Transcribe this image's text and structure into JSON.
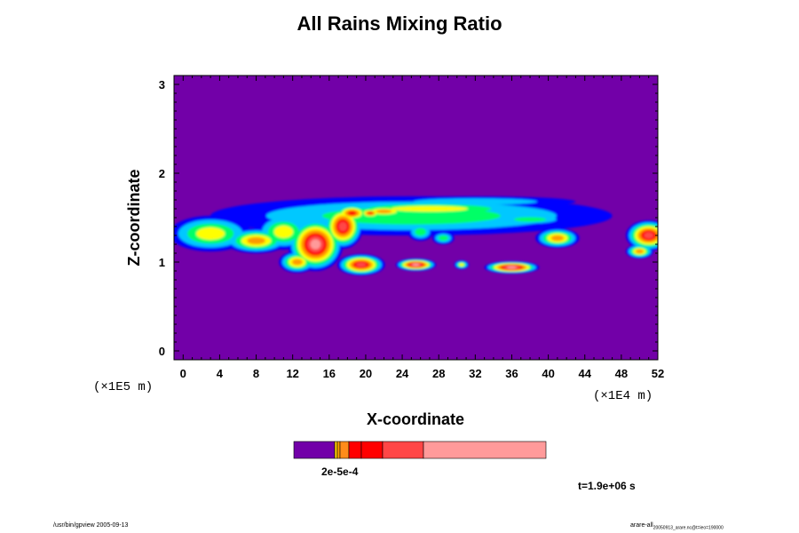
{
  "chart_data": {
    "type": "heatmap",
    "title": "All Rains Mixing Ratio",
    "xlabel": "X-coordinate",
    "ylabel": "Z-coordinate",
    "x_scale_note": "(×1E4 m)",
    "y_scale_note": "(×1E5 m)",
    "xlim": [
      -1,
      52
    ],
    "ylim": [
      -0.1,
      3.1
    ],
    "x_ticks": [
      0,
      4,
      8,
      12,
      16,
      20,
      24,
      28,
      32,
      36,
      40,
      44,
      48,
      52
    ],
    "y_ticks": [
      0,
      1,
      2,
      3
    ],
    "background_level_color": "#7200a8",
    "level_colors": [
      "#7200a8",
      "#0000ff",
      "#00c8ff",
      "#00ff66",
      "#ffff00",
      "#ff9a00",
      "#ff0000",
      "#ff4646",
      "#ff9a9a"
    ],
    "colorbar": {
      "colors": [
        "#7200a8",
        "#ffd000",
        "#ff8c1a",
        "#ff0000",
        "#ff4646",
        "#ff9a9a"
      ],
      "label": "2e-5e-4"
    },
    "features": [
      {
        "x": 14,
        "z": 1.25,
        "peak": "high"
      },
      {
        "x": 17,
        "z": 1.3,
        "peak": "high"
      },
      {
        "x": 19.5,
        "z": 0.97,
        "peak": "high"
      },
      {
        "x": 25.5,
        "z": 0.97,
        "peak": "high"
      },
      {
        "x": 36,
        "z": 0.93,
        "peak": "high"
      },
      {
        "x": 41,
        "z": 1.25,
        "peak": "medium"
      },
      {
        "x": 51,
        "z": 1.3,
        "peak": "high"
      },
      {
        "x": 26,
        "z": 1.35,
        "peak": "medium"
      }
    ]
  },
  "time_label": "t=1.9e+06 s",
  "footer_left": "/usr/bin/gpview 2005-09-13",
  "footer_right_main": "arare-all",
  "footer_right_sub": "20050913_arare.nc@t=ieo=190000"
}
